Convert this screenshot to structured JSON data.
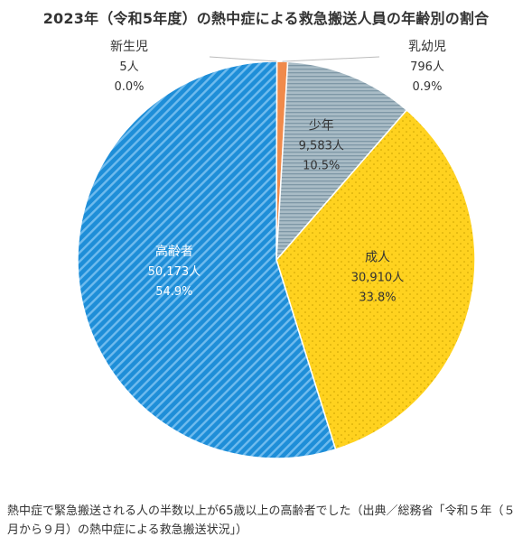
{
  "title": "2023年（令和5年度）の熱中症による救急搬送人員の年齢別の割合",
  "caption": "熱中症で緊急搬送される人の半数以上が65歳以上の高齢者でした（出典／総務省「令和５年（５月から９月）の熱中症による救急搬送状況」）",
  "chart_data": {
    "type": "pie",
    "start_angle_deg": 0,
    "direction": "clockwise",
    "slices": [
      {
        "name": "新生児",
        "count": "5人",
        "percent": "0.0%",
        "value": 5,
        "color": "#f08a4b",
        "pattern": "solid",
        "label_placement": "outside"
      },
      {
        "name": "乳幼児",
        "count": "796人",
        "percent": "0.9%",
        "value": 796,
        "color": "#f08a4b",
        "pattern": "solid",
        "label_placement": "outside"
      },
      {
        "name": "少年",
        "count": "9,583人",
        "percent": "10.5%",
        "value": 9583,
        "color": "#a7b9c4",
        "pattern": "horizontal-lines",
        "label_placement": "inside"
      },
      {
        "name": "成人",
        "count": "30,910人",
        "percent": "33.8%",
        "value": 30910,
        "color": "#ffd21f",
        "pattern": "dots",
        "label_placement": "inside"
      },
      {
        "name": "高齢者",
        "count": "50,173人",
        "percent": "54.9%",
        "value": 50173,
        "color": "#1e8ed8",
        "pattern": "diagonal-stripes",
        "label_placement": "inside"
      }
    ]
  }
}
